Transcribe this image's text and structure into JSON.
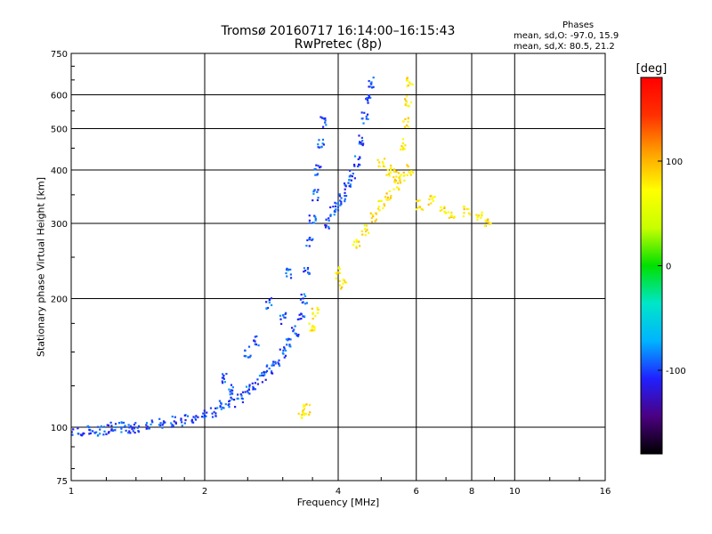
{
  "header": {
    "title_line1": "Tromsø 20160717 16:14:00–16:15:43",
    "title_line2": "RwPretec (8p)",
    "phases_label": "Phases",
    "stat_o": "mean, sd,O: -97.0, 15.9",
    "stat_x": "mean, sd,X:  80.5, 21.2"
  },
  "colorbar": {
    "unit": "[deg]",
    "tick_labels": [
      "100",
      "0",
      "-100"
    ],
    "tick_values": [
      100,
      0,
      -100
    ],
    "range": [
      -180,
      180
    ],
    "colors": [
      "#000000",
      "#4b0082",
      "#2020ff",
      "#00b4ff",
      "#00e6c8",
      "#00e000",
      "#c8ff00",
      "#ffff00",
      "#ffa000",
      "#ff3000",
      "#ff0000"
    ]
  },
  "chart_data": {
    "type": "scatter",
    "xlabel": "Frequency [MHz]",
    "ylabel": "Stationary phase Virtual Height [km]",
    "xscale": "log",
    "yscale": "log",
    "xlim": [
      1,
      16
    ],
    "ylim": [
      75,
      750
    ],
    "xticks": [
      1,
      2,
      4,
      6,
      8,
      10,
      16
    ],
    "yticks": [
      75,
      100,
      200,
      300,
      400,
      500,
      600,
      750
    ],
    "grid": true,
    "series": [
      {
        "name": "O",
        "phase_approx": -97,
        "points": [
          [
            1.0,
            98
          ],
          [
            1.05,
            97
          ],
          [
            1.1,
            99
          ],
          [
            1.15,
            98
          ],
          [
            1.2,
            99
          ],
          [
            1.25,
            101
          ],
          [
            1.3,
            100
          ],
          [
            1.35,
            99
          ],
          [
            1.4,
            100
          ],
          [
            1.5,
            101
          ],
          [
            1.6,
            102
          ],
          [
            1.7,
            103
          ],
          [
            1.8,
            104
          ],
          [
            1.9,
            105
          ],
          [
            2.0,
            107
          ],
          [
            2.1,
            109
          ],
          [
            2.2,
            112
          ],
          [
            2.3,
            115
          ],
          [
            2.4,
            118
          ],
          [
            2.5,
            122
          ],
          [
            2.6,
            126
          ],
          [
            2.7,
            131
          ],
          [
            2.8,
            137
          ],
          [
            2.9,
            143
          ],
          [
            3.0,
            150
          ],
          [
            3.1,
            158
          ],
          [
            3.2,
            168
          ],
          [
            3.3,
            182
          ],
          [
            3.35,
            200
          ],
          [
            3.4,
            230
          ],
          [
            3.45,
            270
          ],
          [
            3.5,
            310
          ],
          [
            3.55,
            350
          ],
          [
            3.6,
            400
          ],
          [
            3.65,
            460
          ],
          [
            3.7,
            520
          ],
          [
            3.8,
            300
          ],
          [
            3.9,
            320
          ],
          [
            4.0,
            330
          ],
          [
            4.1,
            345
          ],
          [
            4.2,
            365
          ],
          [
            4.3,
            390
          ],
          [
            4.4,
            420
          ],
          [
            4.5,
            470
          ],
          [
            4.6,
            530
          ],
          [
            4.7,
            590
          ],
          [
            4.75,
            640
          ],
          [
            2.2,
            130
          ],
          [
            2.3,
            122
          ],
          [
            2.5,
            150
          ],
          [
            2.6,
            160
          ],
          [
            2.8,
            195
          ],
          [
            3.0,
            180
          ],
          [
            3.1,
            230
          ]
        ]
      },
      {
        "name": "X",
        "phase_approx": 80,
        "points": [
          [
            4.4,
            270
          ],
          [
            4.6,
            290
          ],
          [
            4.8,
            310
          ],
          [
            5.0,
            330
          ],
          [
            5.2,
            350
          ],
          [
            5.4,
            370
          ],
          [
            5.6,
            385
          ],
          [
            5.8,
            400
          ],
          [
            5.6,
            460
          ],
          [
            5.7,
            520
          ],
          [
            5.75,
            580
          ],
          [
            5.8,
            640
          ],
          [
            5.0,
            420
          ],
          [
            5.2,
            400
          ],
          [
            5.4,
            390
          ],
          [
            3.5,
            170
          ],
          [
            3.55,
            185
          ],
          [
            3.4,
            110
          ],
          [
            3.3,
            108
          ],
          [
            4.0,
            230
          ],
          [
            4.1,
            215
          ],
          [
            6.1,
            330
          ],
          [
            6.5,
            340
          ],
          [
            6.9,
            325
          ],
          [
            7.2,
            310
          ],
          [
            7.8,
            320
          ],
          [
            8.3,
            310
          ],
          [
            8.7,
            300
          ]
        ]
      }
    ]
  }
}
